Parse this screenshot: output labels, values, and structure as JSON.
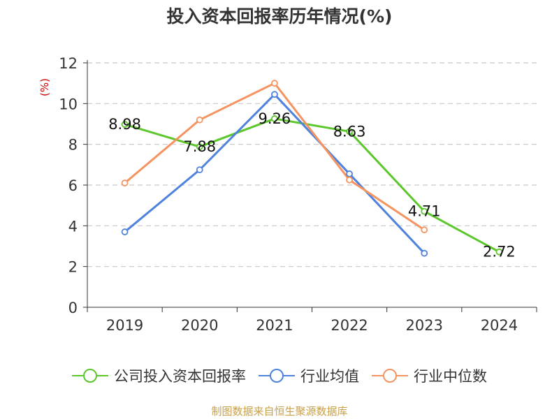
{
  "chart_data": {
    "type": "line",
    "title": "投入资本回报率历年情况(%)",
    "ylabel": "(%)",
    "xlabel": "",
    "categories": [
      "2019",
      "2020",
      "2021",
      "2022",
      "2023",
      "2024"
    ],
    "ylim": [
      0,
      12
    ],
    "yticks": [
      0,
      2,
      4,
      6,
      8,
      10,
      12
    ],
    "grid": true,
    "legend_position": "bottom",
    "series": [
      {
        "name": "公司投入资本回报率",
        "color": "#5cc72a",
        "values": [
          8.98,
          7.88,
          9.26,
          8.63,
          4.71,
          2.72
        ],
        "labels": [
          "8.98",
          "7.88",
          "9.26",
          "8.63",
          "4.71",
          "2.72"
        ]
      },
      {
        "name": "行业均值",
        "color": "#4f82dc",
        "values": [
          3.7,
          6.75,
          10.45,
          6.55,
          2.65,
          null
        ]
      },
      {
        "name": "行业中位数",
        "color": "#f59460",
        "values": [
          6.1,
          9.2,
          11.0,
          6.25,
          3.8,
          null
        ]
      }
    ],
    "source": "制图数据来自恒生聚源数据库"
  }
}
